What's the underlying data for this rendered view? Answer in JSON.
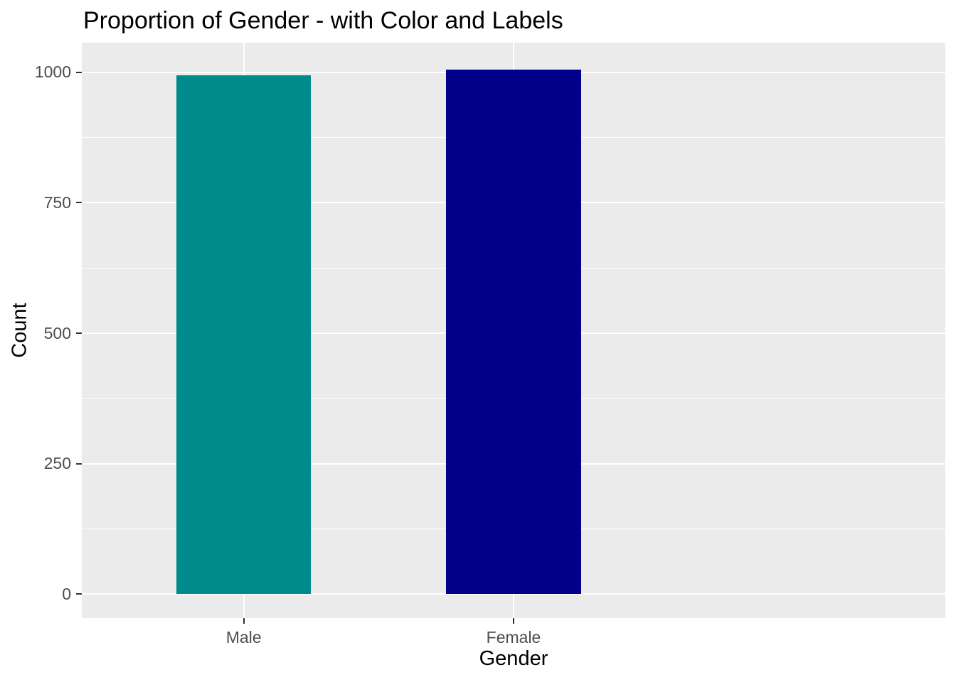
{
  "chart_data": {
    "type": "bar",
    "title": "Proportion of Gender - with Color and Labels",
    "xlabel": "Gender",
    "ylabel": "Count",
    "categories": [
      "Male",
      "Female"
    ],
    "values": [
      995,
      1005
    ],
    "bar_colors": [
      "#008B8B",
      "#00008B"
    ],
    "y_ticks": [
      0,
      250,
      500,
      750,
      1000
    ],
    "y_minor_gridlines": [
      125,
      375,
      625,
      875
    ],
    "ylim": [
      -46,
      1057
    ],
    "bar_width_fraction": 0.5,
    "discrete_expand": 0.6,
    "grid": true,
    "legend_position": "none"
  },
  "theme": {
    "panel_background": "#EBEBEB",
    "plot_background": "#FFFFFF",
    "gridline_color": "#FFFFFF",
    "tick_label_color": "#4D4D4D",
    "tick_mark_color": "#333333",
    "title_color": "#000000",
    "axis_title_color": "#000000"
  }
}
